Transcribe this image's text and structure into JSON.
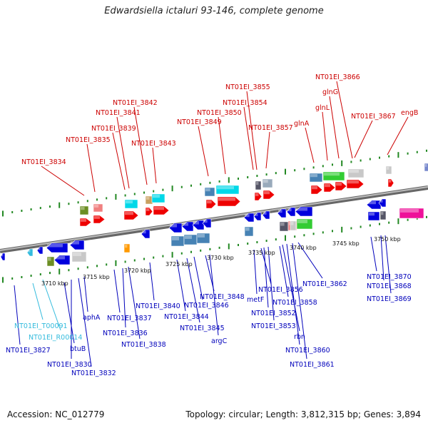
{
  "title": "Edwardsiella ictaluri 93-146, complete genome",
  "footer": {
    "accession": "Accession: NC_012779",
    "topology": "Topology: circular; Length: 3,812,315 bp; Genes: 3,894"
  },
  "colors": {
    "top_label": "#cc0000",
    "bottom_label": "#0000bb",
    "rna_label": "#33bbdd",
    "tick_green": "#228822",
    "backbone": "#888888"
  },
  "ticks": [
    {
      "label": "3710 kbp"
    },
    {
      "label": "3715 kbp"
    },
    {
      "label": "3720 kbp"
    },
    {
      "label": "3725 kbp"
    },
    {
      "label": "3730 kbp"
    },
    {
      "label": "3735 kbp"
    },
    {
      "label": "3740 kbp"
    },
    {
      "label": "3745 kbp"
    },
    {
      "label": "3750 kbp"
    }
  ],
  "top_labels": [
    {
      "text": "NT01EI_3834"
    },
    {
      "text": "NT01EI_3835"
    },
    {
      "text": "NT01EI_3839"
    },
    {
      "text": "NT01EI_3841"
    },
    {
      "text": "NT01EI_3842"
    },
    {
      "text": "NT01EI_3843"
    },
    {
      "text": "NT01EI_3849"
    },
    {
      "text": "NT01EI_3850"
    },
    {
      "text": "NT01EI_3854"
    },
    {
      "text": "NT01EI_3855"
    },
    {
      "text": "NT01EI_3857"
    },
    {
      "text": "glnA"
    },
    {
      "text": "glnL"
    },
    {
      "text": "glnG"
    },
    {
      "text": "NT01EI_3866"
    },
    {
      "text": "NT01EI_3867"
    },
    {
      "text": "engB"
    }
  ],
  "bottom_labels": [
    {
      "text": "NT01EI_T00091",
      "kind": "rna"
    },
    {
      "text": "NT01EI_R00014",
      "kind": "rna"
    },
    {
      "text": "NT01EI_3827"
    },
    {
      "text": "btuB"
    },
    {
      "text": "NT01EI_3830"
    },
    {
      "text": "NT01EI_3832"
    },
    {
      "text": "aphA"
    },
    {
      "text": "NT01EI_3837"
    },
    {
      "text": "NT01EI_3836"
    },
    {
      "text": "NT01EI_3838"
    },
    {
      "text": "NT01EI_3840"
    },
    {
      "text": "NT01EI_3844"
    },
    {
      "text": "NT01EI_3845"
    },
    {
      "text": "NT01EI_3846"
    },
    {
      "text": "NT01EI_3848"
    },
    {
      "text": "argC"
    },
    {
      "text": "metF"
    },
    {
      "text": "NT01EI_3856"
    },
    {
      "text": "NT01EI_3852"
    },
    {
      "text": "NT01EI_3858"
    },
    {
      "text": "NT01EI_3853"
    },
    {
      "text": "rbn"
    },
    {
      "text": "NT01EI_3860"
    },
    {
      "text": "NT01EI_3861"
    },
    {
      "text": "NT01EI_3862"
    },
    {
      "text": "NT01EI_3870"
    },
    {
      "text": "NT01EI_3868"
    },
    {
      "text": "NT01EI_3869"
    }
  ]
}
